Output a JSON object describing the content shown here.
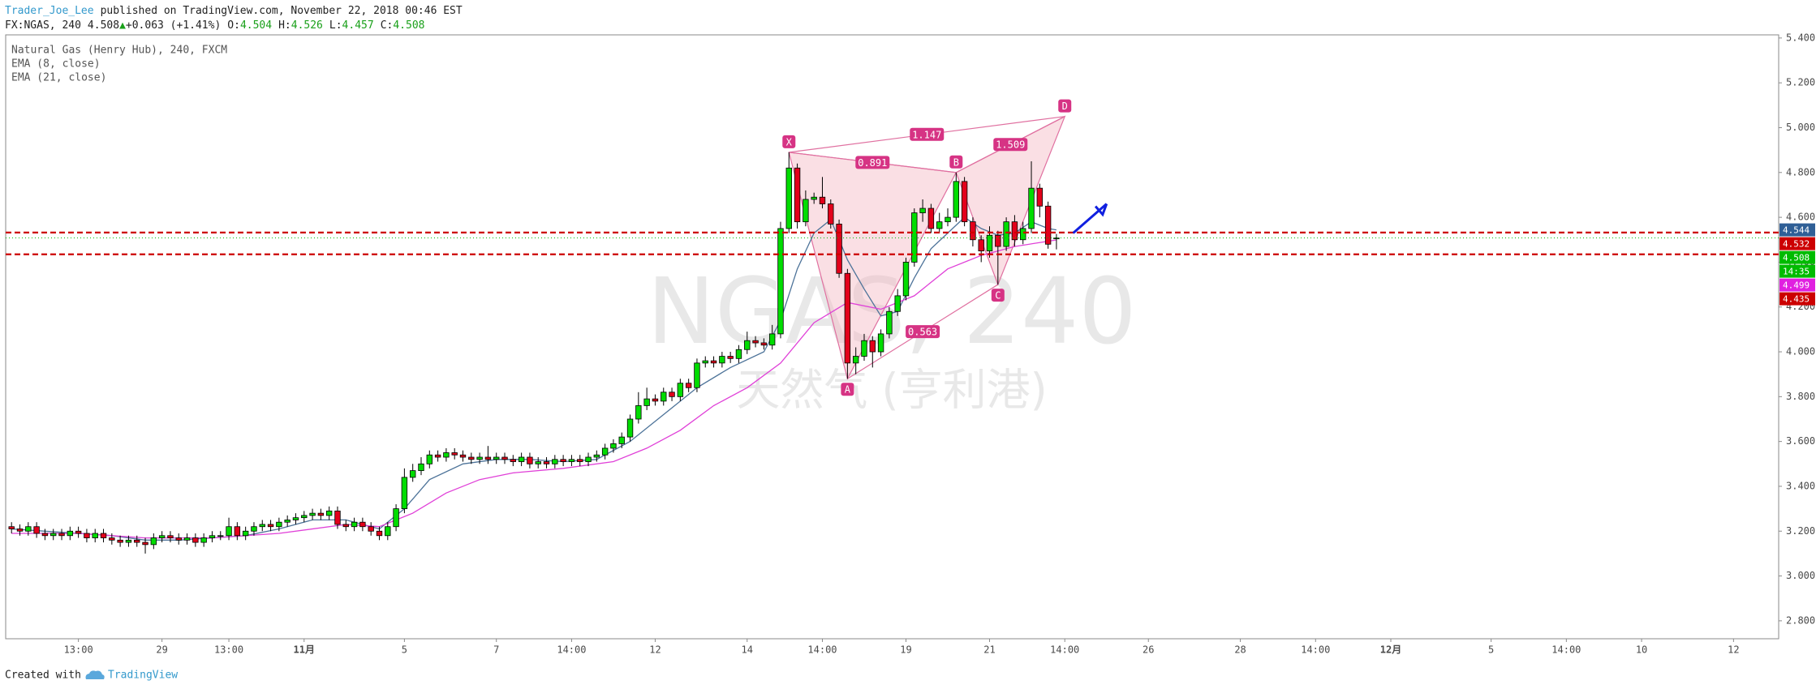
{
  "header": {
    "author": "Trader_Joe_Lee",
    "published": "published on TradingView.com, November 22, 2018 00:46 EST",
    "symbol": "FX:NGAS, 240",
    "arrow": "▲",
    "change": "+0.063 (+1.41%)",
    "o": "O:",
    "h": "H:",
    "l": "L:",
    "c": "C:"
  },
  "watermark": {
    "symbol": "NGAS, 240",
    "name": "天然气 (亨利港)"
  },
  "footer": {
    "text": "Created with",
    "brand": "TradingView"
  },
  "chart_data": {
    "type": "candlestick",
    "title": "Natural Gas (Henry Hub), 240, FXCM",
    "up_color": "#00dd00",
    "down_color": "#e3001b",
    "open": [
      3.22,
      3.21,
      3.2,
      3.22,
      3.19,
      3.18,
      3.19,
      3.18,
      3.2,
      3.19,
      3.17,
      3.19,
      3.17,
      3.16,
      3.15,
      3.16,
      3.15,
      3.14,
      3.17,
      3.18,
      3.17,
      3.16,
      3.17,
      3.15,
      3.17,
      3.18,
      3.18,
      3.22,
      3.18,
      3.2,
      3.22,
      3.23,
      3.22,
      3.24,
      3.25,
      3.26,
      3.27,
      3.28,
      3.27,
      3.29,
      3.23,
      3.22,
      3.24,
      3.22,
      3.2,
      3.18,
      3.22,
      3.3,
      3.44,
      3.47,
      3.5,
      3.54,
      3.53,
      3.55,
      3.54,
      3.53,
      3.52,
      3.53,
      3.52,
      3.53,
      3.52,
      3.51,
      3.53,
      3.5,
      3.51,
      3.5,
      3.52,
      3.51,
      3.52,
      3.51,
      3.53,
      3.54,
      3.57,
      3.59,
      3.62,
      3.7,
      3.76,
      3.79,
      3.78,
      3.82,
      3.8,
      3.86,
      3.84,
      3.95,
      3.96,
      3.95,
      3.98,
      3.97,
      4.01,
      4.05,
      4.04,
      4.03,
      4.08,
      4.55,
      4.82,
      4.58,
      4.68,
      4.69,
      4.66,
      4.57,
      4.35,
      3.95,
      3.98,
      4.05,
      4.0,
      4.08,
      4.18,
      4.25,
      4.4,
      4.62,
      4.64,
      4.55,
      4.58,
      4.6,
      4.76,
      4.58,
      4.5,
      4.45,
      4.52,
      4.47,
      4.58,
      4.5,
      4.55,
      4.73,
      4.65,
      4.504
    ],
    "high": [
      3.24,
      3.23,
      3.24,
      3.24,
      3.21,
      3.21,
      3.21,
      3.22,
      3.22,
      3.21,
      3.21,
      3.21,
      3.19,
      3.18,
      3.18,
      3.18,
      3.17,
      3.19,
      3.2,
      3.2,
      3.19,
      3.19,
      3.19,
      3.19,
      3.2,
      3.2,
      3.26,
      3.24,
      3.22,
      3.24,
      3.25,
      3.25,
      3.26,
      3.27,
      3.28,
      3.29,
      3.3,
      3.3,
      3.31,
      3.31,
      3.25,
      3.26,
      3.26,
      3.24,
      3.22,
      3.24,
      3.32,
      3.48,
      3.5,
      3.53,
      3.56,
      3.56,
      3.57,
      3.57,
      3.56,
      3.55,
      3.55,
      3.58,
      3.55,
      3.55,
      3.54,
      3.55,
      3.55,
      3.53,
      3.53,
      3.54,
      3.54,
      3.54,
      3.54,
      3.55,
      3.56,
      3.59,
      3.61,
      3.64,
      3.72,
      3.82,
      3.84,
      3.81,
      3.84,
      3.84,
      3.88,
      3.88,
      3.97,
      3.98,
      3.98,
      4.0,
      4.0,
      4.03,
      4.09,
      4.07,
      4.06,
      4.12,
      4.58,
      4.89,
      4.84,
      4.72,
      4.71,
      4.78,
      4.68,
      4.59,
      4.37,
      4.02,
      4.08,
      4.07,
      4.1,
      4.2,
      4.28,
      4.42,
      4.64,
      4.68,
      4.66,
      4.62,
      4.64,
      4.8,
      4.78,
      4.6,
      4.52,
      4.56,
      4.54,
      4.6,
      4.61,
      4.58,
      4.85,
      4.75,
      4.67,
      4.526
    ],
    "low": [
      3.19,
      3.18,
      3.18,
      3.17,
      3.16,
      3.16,
      3.16,
      3.16,
      3.17,
      3.15,
      3.15,
      3.15,
      3.14,
      3.13,
      3.13,
      3.13,
      3.1,
      3.12,
      3.15,
      3.15,
      3.14,
      3.14,
      3.13,
      3.13,
      3.15,
      3.16,
      3.16,
      3.16,
      3.16,
      3.18,
      3.2,
      3.2,
      3.2,
      3.22,
      3.23,
      3.24,
      3.25,
      3.25,
      3.25,
      3.21,
      3.2,
      3.2,
      3.2,
      3.18,
      3.16,
      3.16,
      3.2,
      3.28,
      3.42,
      3.45,
      3.48,
      3.51,
      3.51,
      3.52,
      3.51,
      3.5,
      3.5,
      3.5,
      3.5,
      3.5,
      3.49,
      3.49,
      3.48,
      3.48,
      3.48,
      3.48,
      3.49,
      3.49,
      3.49,
      3.49,
      3.51,
      3.52,
      3.55,
      3.57,
      3.6,
      3.68,
      3.74,
      3.76,
      3.76,
      3.78,
      3.78,
      3.82,
      3.82,
      3.93,
      3.93,
      3.93,
      3.95,
      3.95,
      3.99,
      4.02,
      4.01,
      4.01,
      4.06,
      4.53,
      4.55,
      4.56,
      4.66,
      4.64,
      4.55,
      4.33,
      3.88,
      3.9,
      3.96,
      3.93,
      3.98,
      4.06,
      4.16,
      4.23,
      4.38,
      4.58,
      4.53,
      4.53,
      4.56,
      4.58,
      4.56,
      4.47,
      4.4,
      4.42,
      4.3,
      4.45,
      4.47,
      4.48,
      4.53,
      4.6,
      4.46,
      4.457
    ],
    "close": [
      3.21,
      3.2,
      3.22,
      3.19,
      3.18,
      3.19,
      3.18,
      3.2,
      3.19,
      3.17,
      3.19,
      3.17,
      3.16,
      3.15,
      3.16,
      3.15,
      3.14,
      3.17,
      3.18,
      3.17,
      3.16,
      3.17,
      3.15,
      3.17,
      3.18,
      3.18,
      3.22,
      3.18,
      3.2,
      3.22,
      3.23,
      3.22,
      3.24,
      3.25,
      3.26,
      3.27,
      3.28,
      3.27,
      3.29,
      3.23,
      3.22,
      3.24,
      3.22,
      3.2,
      3.18,
      3.22,
      3.3,
      3.44,
      3.47,
      3.5,
      3.54,
      3.53,
      3.55,
      3.54,
      3.53,
      3.52,
      3.53,
      3.52,
      3.53,
      3.52,
      3.51,
      3.53,
      3.5,
      3.51,
      3.5,
      3.52,
      3.51,
      3.52,
      3.51,
      3.53,
      3.54,
      3.57,
      3.59,
      3.62,
      3.7,
      3.76,
      3.79,
      3.78,
      3.82,
      3.8,
      3.86,
      3.84,
      3.95,
      3.96,
      3.95,
      3.98,
      3.97,
      4.01,
      4.05,
      4.04,
      4.03,
      4.08,
      4.55,
      4.82,
      4.58,
      4.68,
      4.69,
      4.66,
      4.57,
      4.35,
      3.95,
      3.98,
      4.05,
      4.0,
      4.08,
      4.18,
      4.25,
      4.4,
      4.62,
      4.64,
      4.55,
      4.58,
      4.6,
      4.76,
      4.58,
      4.5,
      4.45,
      4.52,
      4.47,
      4.58,
      4.5,
      4.55,
      4.73,
      4.65,
      4.48,
      4.508
    ],
    "series": [
      {
        "name": "EMA (8, close)",
        "color": "#4d7399",
        "price_label_color": "#2f5f96",
        "x": [
          0,
          4,
          8,
          12,
          16,
          20,
          24,
          28,
          32,
          36,
          40,
          44,
          47,
          50,
          54,
          58,
          62,
          66,
          70,
          74,
          78,
          82,
          86,
          90,
          92,
          94,
          96,
          98,
          100,
          102,
          104,
          106,
          108,
          110,
          112,
          114,
          116,
          118,
          120,
          122,
          124,
          125
        ],
        "values": [
          3.21,
          3.2,
          3.19,
          3.18,
          3.16,
          3.16,
          3.17,
          3.18,
          3.21,
          3.25,
          3.25,
          3.21,
          3.3,
          3.43,
          3.5,
          3.52,
          3.52,
          3.51,
          3.52,
          3.6,
          3.72,
          3.84,
          3.93,
          4.0,
          4.14,
          4.37,
          4.53,
          4.59,
          4.41,
          4.28,
          4.16,
          4.18,
          4.33,
          4.46,
          4.53,
          4.6,
          4.55,
          4.52,
          4.53,
          4.58,
          4.55,
          4.544
        ]
      },
      {
        "name": "EMA (21, close)",
        "color": "#e040d8",
        "price_label_color": "#e020e0",
        "x": [
          0,
          8,
          16,
          24,
          32,
          40,
          44,
          48,
          52,
          56,
          60,
          66,
          72,
          76,
          80,
          84,
          88,
          92,
          96,
          100,
          104,
          108,
          112,
          116,
          120,
          125
        ],
        "values": [
          3.19,
          3.19,
          3.17,
          3.17,
          3.19,
          3.23,
          3.22,
          3.28,
          3.37,
          3.43,
          3.46,
          3.48,
          3.51,
          3.57,
          3.65,
          3.76,
          3.84,
          3.95,
          4.13,
          4.22,
          4.19,
          4.25,
          4.37,
          4.43,
          4.47,
          4.499
        ]
      }
    ],
    "lines": [
      {
        "value": 4.532,
        "color": "#cc0000"
      },
      {
        "value": 4.435,
        "color": "#cc0000"
      }
    ],
    "last_price_color": "#00bb00",
    "countdown": "14:35",
    "pattern": {
      "fill": "#f4b8c4",
      "stroke": "#e070a0",
      "label_color": "#d63384",
      "points": [
        {
          "label": "X",
          "x": 93,
          "y": 4.89
        },
        {
          "label": "A",
          "x": 100,
          "y": 3.88
        },
        {
          "label": "B",
          "x": 113,
          "y": 4.8
        },
        {
          "label": "C",
          "x": 118,
          "y": 4.3
        },
        {
          "label": "D",
          "x": 126,
          "y": 5.05
        }
      ],
      "ratios": {
        "XB": "0.891",
        "AC": "0.563",
        "BD": "1.509",
        "XD": "1.147"
      }
    },
    "arrow": {
      "from": [
        127,
        4.53
      ],
      "to": [
        131,
        4.66
      ],
      "color": "#1020e0"
    },
    "xlim": [
      -0.7,
      211.4
    ],
    "xticks": [
      {
        "value": 8,
        "label": "13:00"
      },
      {
        "value": 18,
        "label": "29"
      },
      {
        "value": 26,
        "label": "13:00"
      },
      {
        "value": 35,
        "label": "11月"
      },
      {
        "value": 47,
        "label": "5"
      },
      {
        "value": 58,
        "label": "7"
      },
      {
        "value": 67,
        "label": "14:00"
      },
      {
        "value": 77,
        "label": "12"
      },
      {
        "value": 88,
        "label": "14"
      },
      {
        "value": 97,
        "label": "14:00"
      },
      {
        "value": 107,
        "label": "19"
      },
      {
        "value": 117,
        "label": "21"
      },
      {
        "value": 126,
        "label": "14:00"
      },
      {
        "value": 136,
        "label": "26"
      },
      {
        "value": 147,
        "label": "28"
      },
      {
        "value": 156,
        "label": "14:00"
      },
      {
        "value": 165,
        "label": "12月"
      },
      {
        "value": 177,
        "label": "5"
      },
      {
        "value": 186,
        "label": "14:00"
      },
      {
        "value": 195,
        "label": "10"
      },
      {
        "value": 206,
        "label": "12"
      }
    ],
    "ylim": [
      2.72,
      5.414
    ],
    "yticks": [
      {
        "value": 2.8,
        "label": "2.800"
      },
      {
        "value": 3.0,
        "label": "3.000"
      },
      {
        "value": 3.2,
        "label": "3.200"
      },
      {
        "value": 3.4,
        "label": "3.400"
      },
      {
        "value": 3.6,
        "label": "3.600"
      },
      {
        "value": 3.8,
        "label": "3.800"
      },
      {
        "value": 4.0,
        "label": "4.000"
      },
      {
        "value": 4.2,
        "label": "4.200"
      },
      {
        "value": 4.4,
        "label": "4.400"
      },
      {
        "value": 4.6,
        "label": "4.600"
      },
      {
        "value": 4.8,
        "label": "4.800"
      },
      {
        "value": 5.0,
        "label": "5.000"
      },
      {
        "value": 5.2,
        "label": "5.200"
      },
      {
        "value": 5.4,
        "label": "5.400"
      }
    ]
  }
}
